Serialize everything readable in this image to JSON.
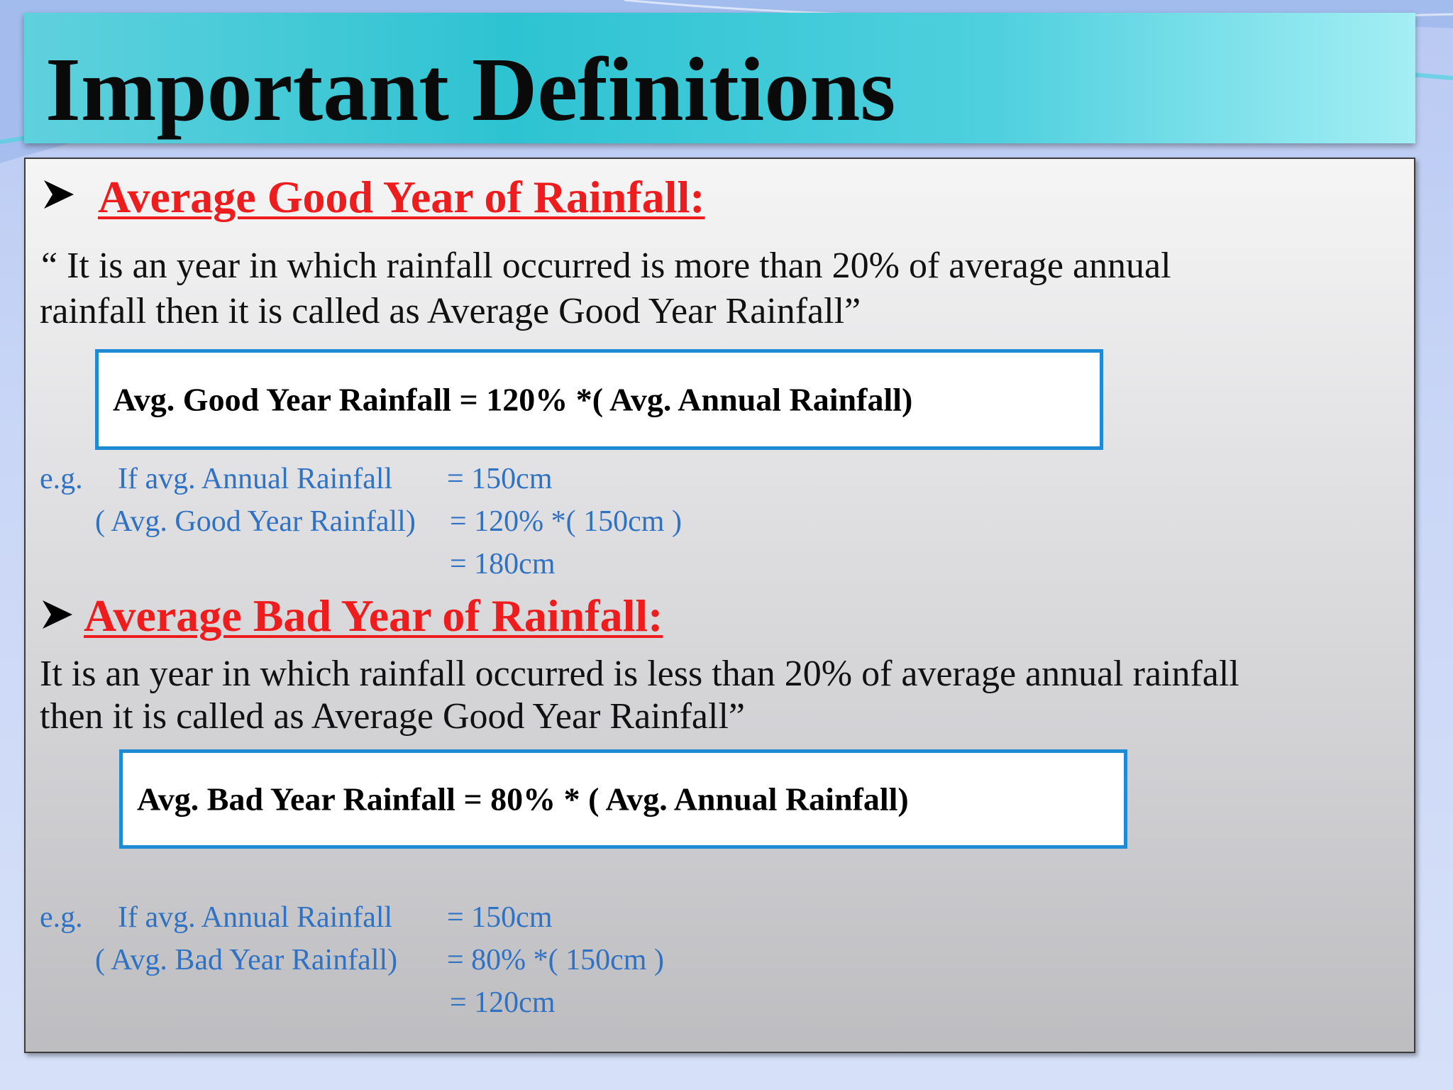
{
  "slide": {
    "title": "Important Definitions"
  },
  "good_year": {
    "heading": "Average Good Year of Rainfall:",
    "definition_line1": "“ It is an year in which rainfall occurred is more than 20% of average annual",
    "definition_line2": "rainfall  then it is called as Average Good Year Rainfall”",
    "formula": "Avg. Good Year Rainfall = 120% *( Avg. Annual Rainfall)",
    "example": {
      "eg_label": "e.g.",
      "row1_label": "If avg. Annual Rainfall",
      "row1_value": "=  150cm",
      "row2_label": "( Avg. Good Year Rainfall)",
      "row2_value": "=  120% *( 150cm )",
      "row3_value": "=  180cm"
    }
  },
  "bad_year": {
    "heading": "Average Bad Year of Rainfall:",
    "definition_line1": "It is an year in which rainfall occurred is less than 20% of average annual rainfall",
    "definition_line2": "then it is called as Average Good Year Rainfall”",
    "formula": "Avg. Bad Year Rainfall = 80% * ( Avg. Annual Rainfall)",
    "example": {
      "eg_label": "e.g.",
      "row1_label": "If avg. Annual Rainfall",
      "row1_value": "= 150cm",
      "row2_label": "( Avg. Bad Year Rainfall)",
      "row2_value": "=  80% *( 150cm )",
      "row3_value": "=  120cm"
    }
  },
  "colors": {
    "heading_red": "#ee1c1c",
    "example_blue": "#2f72c4",
    "formula_border": "#1f8bd4",
    "title_bar": "#2ec3d2"
  }
}
